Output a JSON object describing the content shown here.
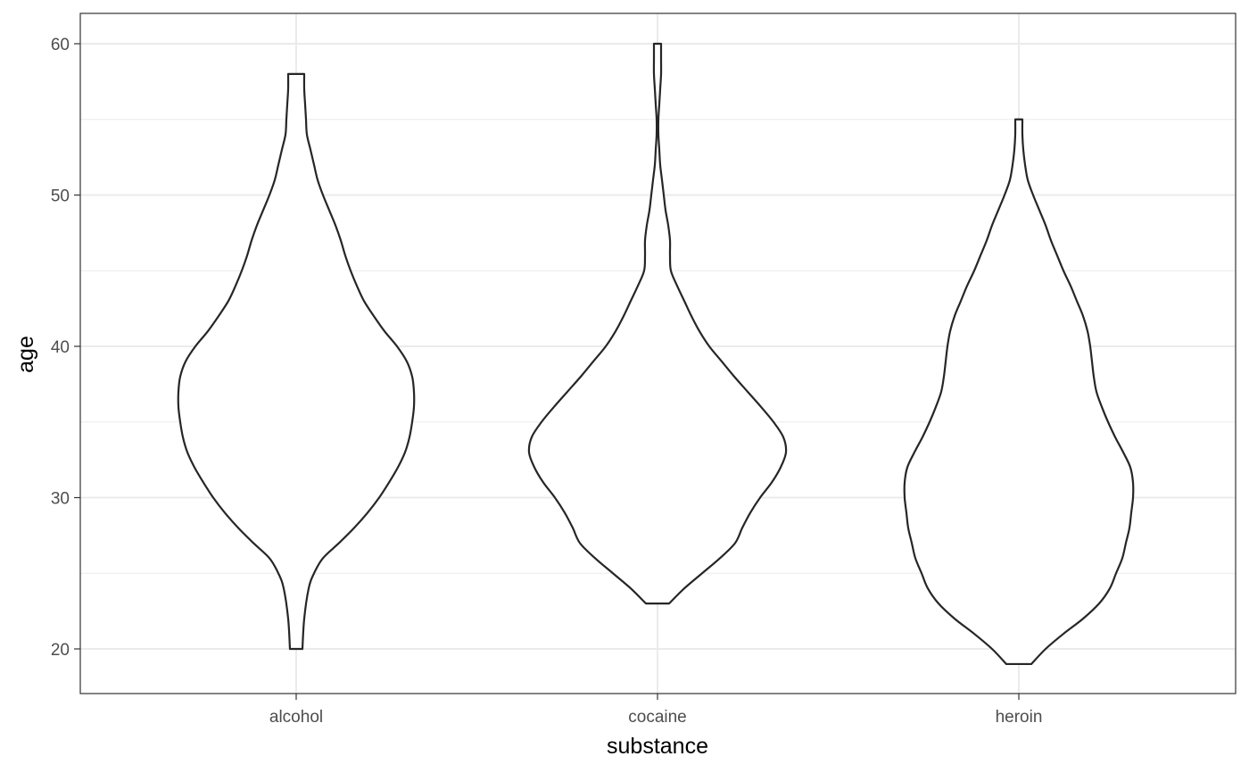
{
  "chart_data": {
    "type": "violin",
    "xlabel": "substance",
    "ylabel": "age",
    "categories": [
      "alcohol",
      "cocaine",
      "heroin"
    ],
    "ylim": [
      17,
      62
    ],
    "yticks": [
      20,
      30,
      40,
      50,
      60
    ],
    "grid": true,
    "legend": "none",
    "colors": {
      "outline": "#262626",
      "fill": "#ffffff",
      "grid": "#ebebeb",
      "panel_border": "#333333"
    },
    "violins": [
      {
        "category": "alcohol",
        "min": 20,
        "max": 58,
        "density": [
          [
            20,
            0.07
          ],
          [
            22,
            0.09
          ],
          [
            24,
            0.14
          ],
          [
            25,
            0.2
          ],
          [
            26,
            0.3
          ],
          [
            27,
            0.48
          ],
          [
            28,
            0.65
          ],
          [
            29,
            0.8
          ],
          [
            30,
            0.93
          ],
          [
            31,
            1.04
          ],
          [
            32,
            1.14
          ],
          [
            33,
            1.22
          ],
          [
            34,
            1.27
          ],
          [
            35,
            1.3
          ],
          [
            36,
            1.32
          ],
          [
            37,
            1.32
          ],
          [
            38,
            1.3
          ],
          [
            39,
            1.24
          ],
          [
            40,
            1.13
          ],
          [
            41,
            0.99
          ],
          [
            42,
            0.87
          ],
          [
            43,
            0.76
          ],
          [
            44,
            0.68
          ],
          [
            45,
            0.61
          ],
          [
            46,
            0.55
          ],
          [
            47,
            0.5
          ],
          [
            48,
            0.44
          ],
          [
            49,
            0.37
          ],
          [
            50,
            0.3
          ],
          [
            51,
            0.24
          ],
          [
            52,
            0.2
          ],
          [
            53,
            0.16
          ],
          [
            54,
            0.12
          ],
          [
            55,
            0.11
          ],
          [
            56,
            0.1
          ],
          [
            57,
            0.09
          ],
          [
            58,
            0.09
          ]
        ]
      },
      {
        "category": "cocaine",
        "min": 23,
        "max": 60,
        "density": [
          [
            23,
            0.13
          ],
          [
            24,
            0.3
          ],
          [
            25,
            0.5
          ],
          [
            26,
            0.7
          ],
          [
            27,
            0.87
          ],
          [
            28,
            0.95
          ],
          [
            29,
            1.04
          ],
          [
            30,
            1.15
          ],
          [
            31,
            1.28
          ],
          [
            32,
            1.38
          ],
          [
            33,
            1.44
          ],
          [
            34,
            1.41
          ],
          [
            35,
            1.3
          ],
          [
            36,
            1.16
          ],
          [
            37,
            1.01
          ],
          [
            38,
            0.86
          ],
          [
            39,
            0.72
          ],
          [
            40,
            0.58
          ],
          [
            41,
            0.47
          ],
          [
            42,
            0.38
          ],
          [
            43,
            0.3
          ],
          [
            44,
            0.22
          ],
          [
            45,
            0.15
          ],
          [
            46,
            0.14
          ],
          [
            47,
            0.14
          ],
          [
            48,
            0.12
          ],
          [
            49,
            0.09
          ],
          [
            50,
            0.07
          ],
          [
            51,
            0.05
          ],
          [
            52,
            0.03
          ],
          [
            53,
            0.02
          ],
          [
            54,
            0.01
          ],
          [
            55,
            0.01
          ],
          [
            56,
            0.02
          ],
          [
            57,
            0.03
          ],
          [
            58,
            0.04
          ],
          [
            59,
            0.04
          ],
          [
            60,
            0.04
          ]
        ]
      },
      {
        "category": "heroin",
        "min": 19,
        "max": 55,
        "density": [
          [
            19,
            0.14
          ],
          [
            20,
            0.3
          ],
          [
            21,
            0.5
          ],
          [
            22,
            0.72
          ],
          [
            23,
            0.9
          ],
          [
            24,
            1.02
          ],
          [
            25,
            1.09
          ],
          [
            26,
            1.16
          ],
          [
            27,
            1.2
          ],
          [
            28,
            1.24
          ],
          [
            29,
            1.26
          ],
          [
            30,
            1.28
          ],
          [
            31,
            1.28
          ],
          [
            32,
            1.25
          ],
          [
            33,
            1.17
          ],
          [
            34,
            1.08
          ],
          [
            35,
            1.0
          ],
          [
            36,
            0.93
          ],
          [
            37,
            0.87
          ],
          [
            38,
            0.84
          ],
          [
            39,
            0.82
          ],
          [
            40,
            0.8
          ],
          [
            41,
            0.77
          ],
          [
            42,
            0.72
          ],
          [
            43,
            0.65
          ],
          [
            44,
            0.58
          ],
          [
            45,
            0.5
          ],
          [
            46,
            0.43
          ],
          [
            47,
            0.36
          ],
          [
            48,
            0.3
          ],
          [
            49,
            0.23
          ],
          [
            50,
            0.16
          ],
          [
            51,
            0.1
          ],
          [
            52,
            0.07
          ],
          [
            53,
            0.05
          ],
          [
            54,
            0.04
          ],
          [
            55,
            0.04
          ]
        ]
      }
    ]
  }
}
